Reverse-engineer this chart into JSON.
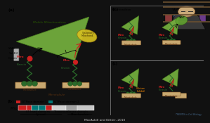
{
  "bg_color": "#111111",
  "slide_bg": "#e8e8e8",
  "panel_left_bg": "#ffffff",
  "panel_right_bg": "#dce8f0",
  "webcam_bg": "#5a4a3a",
  "green_tri": "#7ab840",
  "green_tri_edge": "#4a8020",
  "yellow_blob": "#d4c020",
  "tan_mt": "#c8a870",
  "tan_mt_edge": "#8a6030",
  "dark_green": "#2a6a2a",
  "miro_red": "#cc2020",
  "teal": "#007878",
  "domain_red": "#cc2020",
  "domain_gray": "#b0b0b0",
  "domain_dark_gray": "#888888",
  "citation": "MacAskill and Kittler, 2010",
  "journal": "TRENDS in Cell Biology",
  "skin": "#c8a878",
  "dark_suit": "#383838",
  "shelf_color": "#6a5030"
}
